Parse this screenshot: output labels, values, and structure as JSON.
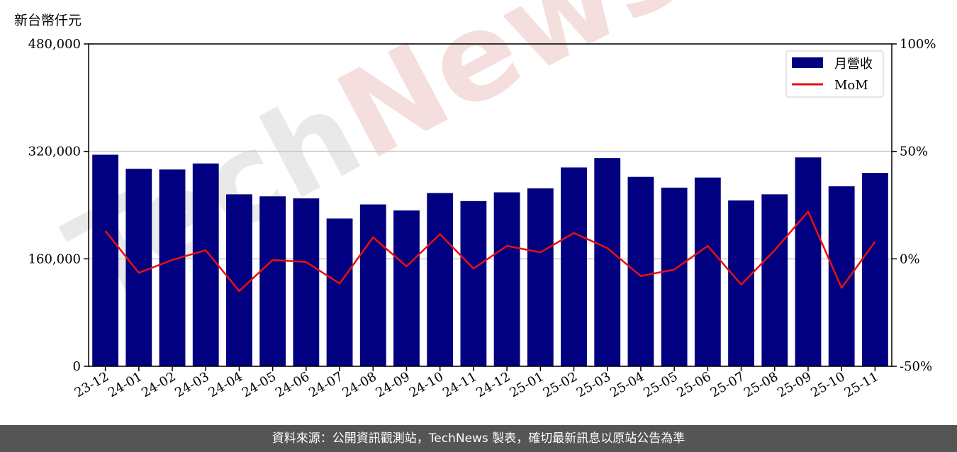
{
  "unit_label": "新台幣仟元",
  "footer_text": "資料來源：公開資訊觀測站，TechNews 製表，確切最新訊息以原站公告為準",
  "watermark": {
    "part1": "Tech",
    "part2": "News"
  },
  "colors": {
    "bar": "#000080",
    "line": "#e8100f",
    "grid": "#c8c8c8",
    "footer_bg": "#555555"
  },
  "chart_data": {
    "type": "bar",
    "title": "",
    "xlabel": "",
    "ylabel": "新台幣仟元",
    "categories": [
      "23-12",
      "24-01",
      "24-02",
      "24-03",
      "24-04",
      "24-05",
      "24-06",
      "24-07",
      "24-08",
      "24-09",
      "24-10",
      "24-11",
      "24-12",
      "25-01",
      "25-02",
      "25-03",
      "25-04",
      "25-05",
      "25-06",
      "25-07",
      "25-08",
      "25-09",
      "25-10",
      "25-11"
    ],
    "series": [
      {
        "name": "月營收",
        "axis": "left",
        "type": "bar",
        "values": [
          315000,
          294000,
          293000,
          302000,
          256000,
          253000,
          250000,
          220000,
          241000,
          232000,
          258000,
          246000,
          259000,
          265000,
          296000,
          310000,
          282000,
          266000,
          281000,
          247000,
          256000,
          311000,
          268000,
          288000
        ]
      },
      {
        "name": "MoM",
        "axis": "right",
        "type": "line",
        "values": [
          13.0,
          -6.5,
          -0.5,
          4.0,
          -15.0,
          -0.5,
          -1.5,
          -11.5,
          10.0,
          -3.5,
          11.5,
          -4.5,
          6.0,
          3.0,
          12.0,
          5.0,
          -8.0,
          -5.0,
          6.0,
          -12.0,
          4.0,
          22.0,
          -13.5,
          8.0
        ]
      }
    ],
    "ylim": [
      0,
      480000
    ],
    "y_ticks": [
      "0",
      "160,000",
      "320,000",
      "480,000"
    ],
    "y2lim": [
      -50,
      100
    ],
    "y2_ticks": [
      "-50%",
      "0%",
      "50%",
      "100%"
    ],
    "grid": "horizontal",
    "legend": "top-right"
  }
}
